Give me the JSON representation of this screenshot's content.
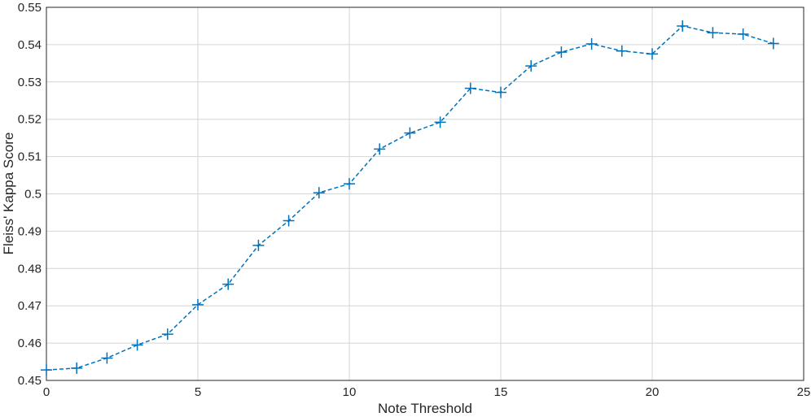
{
  "chart_data": {
    "type": "line",
    "xlabel": "Note Threshold",
    "ylabel": "Fleiss' Kappa Score",
    "x": [
      0,
      1,
      2,
      3,
      4,
      5,
      6,
      7,
      8,
      9,
      10,
      11,
      12,
      13,
      14,
      15,
      16,
      17,
      18,
      19,
      20,
      21,
      22,
      23,
      24
    ],
    "series": [
      {
        "color": "#0072bd",
        "values": [
          0.4528,
          0.4533,
          0.456,
          0.4595,
          0.4624,
          0.4703,
          0.4758,
          0.4862,
          0.4928,
          0.5003,
          0.5027,
          0.512,
          0.5163,
          0.5192,
          0.5283,
          0.5272,
          0.5343,
          0.538,
          0.5402,
          0.5383,
          0.5375,
          0.545,
          0.5432,
          0.5428,
          0.5403
        ]
      }
    ],
    "xlim": [
      0,
      25
    ],
    "xticks": [
      0,
      5,
      10,
      15,
      20,
      25
    ],
    "ylim": [
      0.45,
      0.55
    ],
    "yticks": [
      0.45,
      0.46,
      0.47,
      0.48,
      0.49,
      0.5,
      0.51,
      0.52,
      0.53,
      0.54,
      0.55
    ],
    "grid": true
  }
}
